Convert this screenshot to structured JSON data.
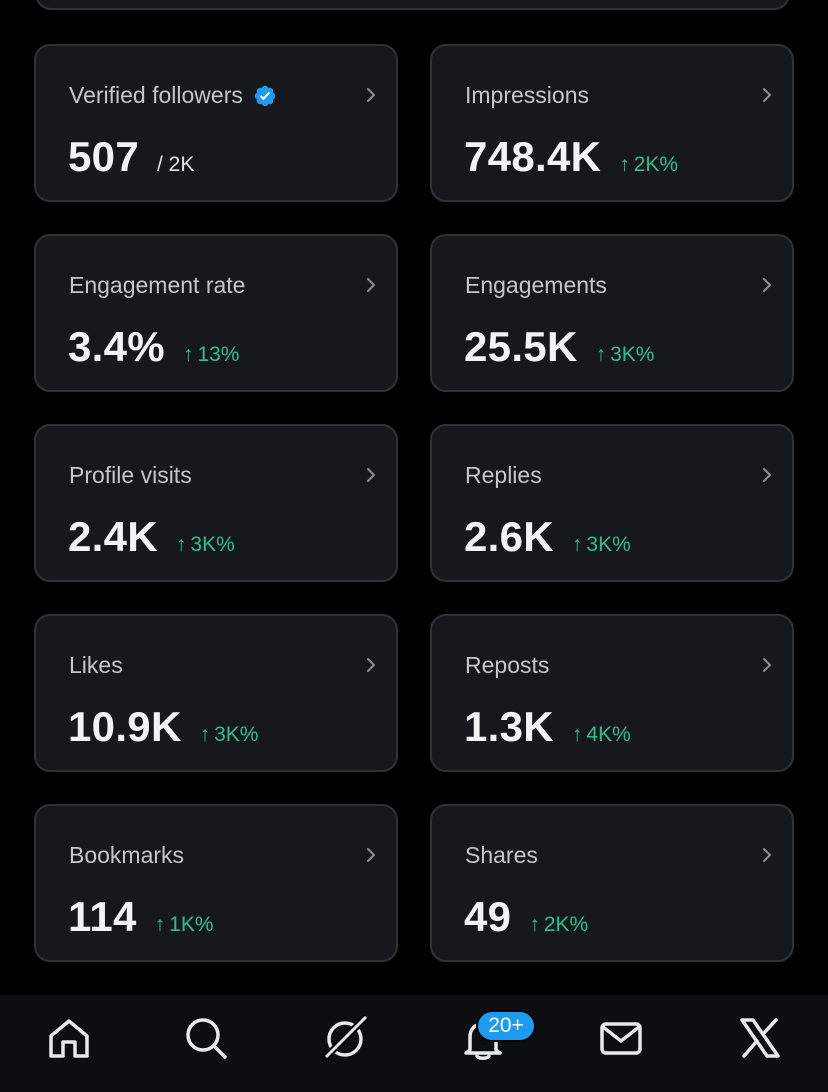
{
  "colors": {
    "background": "#000000",
    "card_background": "#16181c",
    "card_border": "#2f3336",
    "positive_delta": "#2fc08a",
    "verified_badge": "#1d9bf0",
    "notification_badge": "#1d9bf0"
  },
  "metrics": [
    {
      "label": "Verified followers",
      "value": "507",
      "sub": "/ 2K",
      "delta": "",
      "icon": "verified-badge-icon"
    },
    {
      "label": "Impressions",
      "value": "748.4K",
      "sub": "",
      "delta": "2K%"
    },
    {
      "label": "Engagement rate",
      "value": "3.4%",
      "sub": "",
      "delta": "13%"
    },
    {
      "label": "Engagements",
      "value": "25.5K",
      "sub": "",
      "delta": "3K%"
    },
    {
      "label": "Profile visits",
      "value": "2.4K",
      "sub": "",
      "delta": "3K%"
    },
    {
      "label": "Replies",
      "value": "2.6K",
      "sub": "",
      "delta": "3K%"
    },
    {
      "label": "Likes",
      "value": "10.9K",
      "sub": "",
      "delta": "3K%"
    },
    {
      "label": "Reposts",
      "value": "1.3K",
      "sub": "",
      "delta": "4K%"
    },
    {
      "label": "Bookmarks",
      "value": "114",
      "sub": "",
      "delta": "1K%"
    },
    {
      "label": "Shares",
      "value": "49",
      "sub": "",
      "delta": "2K%"
    }
  ],
  "delta_arrow": "↑",
  "nav": {
    "items": [
      {
        "icon": "home-icon"
      },
      {
        "icon": "search-icon"
      },
      {
        "icon": "grok-icon"
      },
      {
        "icon": "notifications-bell-icon"
      },
      {
        "icon": "messages-envelope-icon"
      },
      {
        "icon": "x-logo-icon"
      }
    ],
    "notification_count": "20+"
  }
}
